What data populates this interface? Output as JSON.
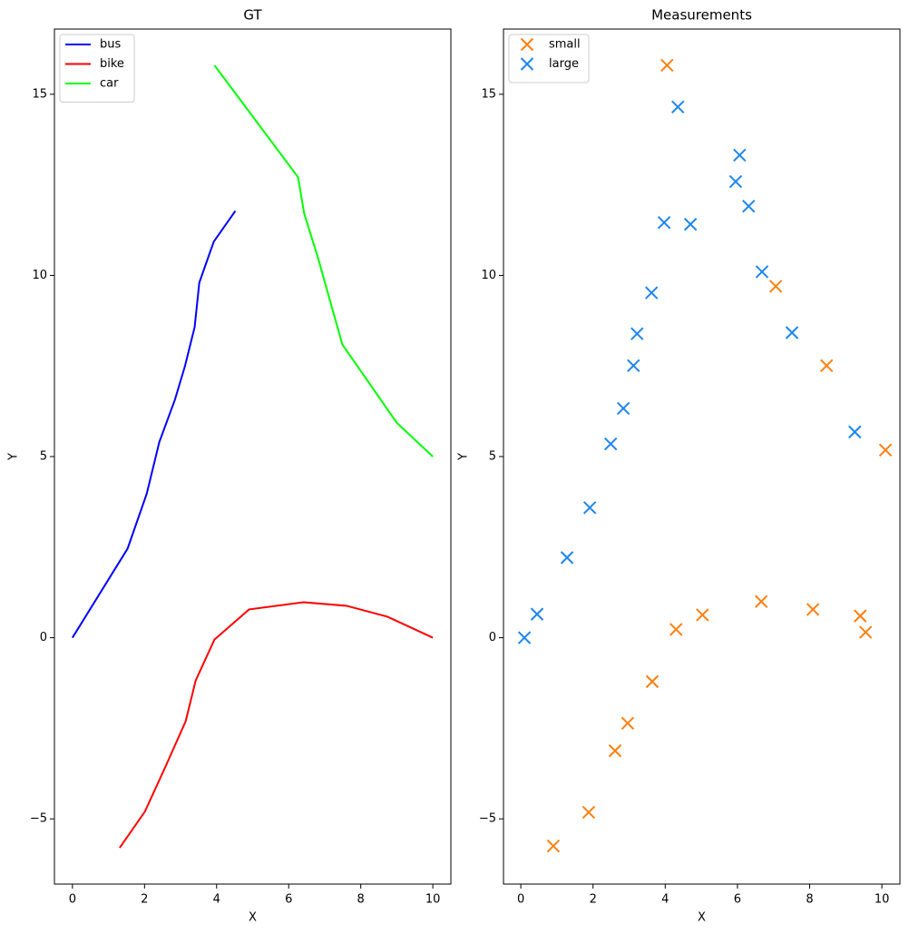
{
  "chart_data": [
    {
      "type": "line",
      "title": "GT",
      "xlabel": "X",
      "ylabel": "Y",
      "xlim": [
        -0.5,
        10.5
      ],
      "ylim": [
        -6.8,
        16.8
      ],
      "xticks": [
        0,
        2,
        4,
        6,
        8,
        10
      ],
      "yticks": [
        {
          "value": -5,
          "label": "−5"
        },
        0,
        5,
        10,
        15
      ],
      "legend": "upper left",
      "series": [
        {
          "name": "bus",
          "color": "#0000ff",
          "x": [
            0,
            1.53,
            2.06,
            2.41,
            2.84,
            3.12,
            3.39,
            3.52,
            3.92,
            4.52
          ],
          "values": [
            0,
            2.46,
            3.97,
            5.4,
            6.56,
            7.49,
            8.57,
            9.8,
            10.93,
            11.78
          ]
        },
        {
          "name": "bike",
          "color": "#ff0000",
          "x": [
            1.31,
            2.01,
            2.59,
            3.14,
            3.42,
            3.94,
            4.9,
            6.41,
            7.61,
            8.74,
            10
          ],
          "values": [
            -5.8,
            -4.8,
            -3.54,
            -2.31,
            -1.18,
            -0.05,
            0.78,
            0.98,
            0.88,
            0.58,
            0
          ]
        },
        {
          "name": "car",
          "color": "#00ff00",
          "x": [
            3.94,
            6.26,
            6.43,
            6.83,
            7.19,
            7.49,
            9.0,
            10
          ],
          "values": [
            15.8,
            12.71,
            11.71,
            10.43,
            9.15,
            8.09,
            5.93,
            5.0
          ]
        }
      ]
    },
    {
      "type": "scatter",
      "title": "Measurements",
      "xlabel": "X",
      "ylabel": "Y",
      "xlim": [
        -0.48,
        10.5
      ],
      "ylim": [
        -6.8,
        16.8
      ],
      "xticks": [
        0,
        2,
        4,
        6,
        8,
        10
      ],
      "yticks": [
        {
          "value": -5,
          "label": "−5"
        },
        0,
        5,
        10,
        15
      ],
      "legend": "upper left",
      "series": [
        {
          "name": "small",
          "color": "#ff7f0e",
          "x": [
            0.9,
            1.88,
            2.61,
            2.96,
            3.64,
            4.05,
            4.3,
            5.03,
            6.66,
            7.06,
            8.09,
            8.47,
            9.4,
            9.55,
            10.1
          ],
          "values": [
            -5.75,
            -4.82,
            -3.12,
            -2.36,
            -1.21,
            15.8,
            0.23,
            0.63,
            1.0,
            9.7,
            0.78,
            7.51,
            0.6,
            0.15,
            5.18
          ]
        },
        {
          "name": "large",
          "color": "#1c86ee",
          "x": [
            0.1,
            0.45,
            1.28,
            1.91,
            2.49,
            2.84,
            3.12,
            3.22,
            3.62,
            3.97,
            4.35,
            4.7,
            5.95,
            6.06,
            6.31,
            6.68,
            7.51,
            9.25
          ],
          "values": [
            0,
            0.65,
            2.21,
            3.59,
            5.35,
            6.33,
            7.51,
            8.39,
            9.52,
            11.46,
            14.65,
            11.41,
            12.59,
            13.32,
            11.91,
            10.1,
            8.42,
            5.68
          ]
        }
      ]
    }
  ]
}
